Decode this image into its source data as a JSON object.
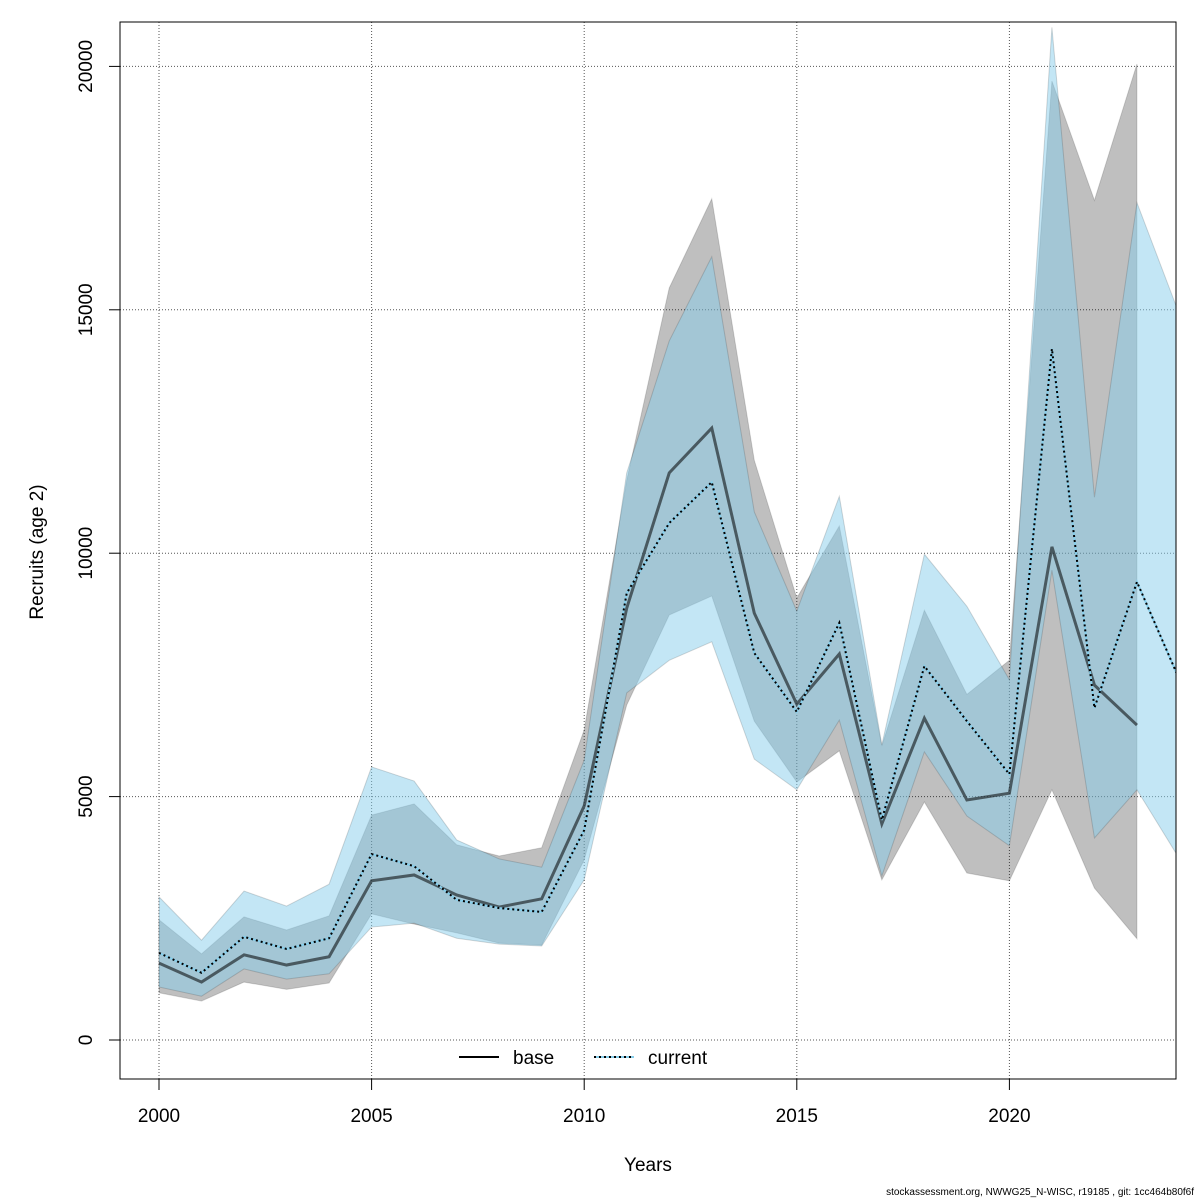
{
  "chart_data": {
    "type": "area",
    "title": "",
    "xlabel": "Years",
    "ylabel": "Recruits (age 2)",
    "xlim": [
      1999.1,
      2024
    ],
    "ylim": [
      -900,
      20900
    ],
    "x_ticks": [
      2000,
      2005,
      2010,
      2015,
      2020
    ],
    "y_ticks": [
      0,
      5000,
      10000,
      15000,
      20000
    ],
    "grid": true,
    "legend_position": "bottom",
    "series": [
      {
        "name": "base",
        "line_style": "solid",
        "line_color": "#000000",
        "band_color": "#808080",
        "x": [
          2000,
          2001,
          2002,
          2003,
          2004,
          2005,
          2006,
          2007,
          2008,
          2009,
          2010,
          2011,
          2012,
          2013,
          2014,
          2015,
          2016,
          2017,
          2018,
          2019,
          2020,
          2021,
          2022,
          2023
        ],
        "values": [
          1580,
          1190,
          1750,
          1540,
          1710,
          3270,
          3390,
          2980,
          2730,
          2900,
          4810,
          8870,
          11650,
          12570,
          8770,
          6900,
          7930,
          4440,
          6610,
          4930,
          5070,
          10130,
          7290,
          6470
        ],
        "upper": [
          2470,
          1770,
          2530,
          2260,
          2550,
          4620,
          4850,
          4010,
          3780,
          3950,
          6370,
          11500,
          15450,
          17280,
          11910,
          9080,
          10560,
          6040,
          8830,
          7100,
          7800,
          19700,
          17250,
          20050
        ],
        "lower": [
          970,
          800,
          1190,
          1040,
          1170,
          2590,
          2380,
          2200,
          1990,
          1950,
          3700,
          6880,
          8730,
          9120,
          6550,
          5300,
          5940,
          3290,
          4890,
          3430,
          3270,
          5140,
          3120,
          2080
        ]
      },
      {
        "name": "current",
        "line_style": "dotted",
        "line_color": "#000000",
        "band_color": "#87ceeb",
        "x": [
          2000,
          2001,
          2002,
          2003,
          2004,
          2005,
          2006,
          2007,
          2008,
          2009,
          2010,
          2011,
          2012,
          2013,
          2014,
          2015,
          2016,
          2017,
          2018,
          2019,
          2020,
          2021,
          2022,
          2023,
          2024
        ],
        "values": [
          1790,
          1380,
          2120,
          1870,
          2090,
          3820,
          3570,
          2880,
          2710,
          2630,
          4310,
          9180,
          10620,
          11460,
          7950,
          6740,
          8570,
          4520,
          7680,
          6550,
          5460,
          14200,
          6820,
          9410,
          7400
        ],
        "upper": [
          2940,
          2050,
          3060,
          2750,
          3200,
          5610,
          5320,
          4110,
          3720,
          3550,
          5750,
          11650,
          14360,
          16090,
          10850,
          8810,
          11170,
          6060,
          9980,
          8910,
          7400,
          20800,
          11150,
          17200,
          14900
        ],
        "lower": [
          1090,
          900,
          1460,
          1250,
          1360,
          2320,
          2400,
          2090,
          1970,
          1930,
          3290,
          7130,
          7800,
          8180,
          5770,
          5140,
          6570,
          3370,
          5920,
          4600,
          3990,
          9650,
          4150,
          5140,
          3720
        ]
      }
    ]
  },
  "footer": "stockassessment.org, NWWG25_N-WISC, r19185 , git: 1cc464b80f6f"
}
